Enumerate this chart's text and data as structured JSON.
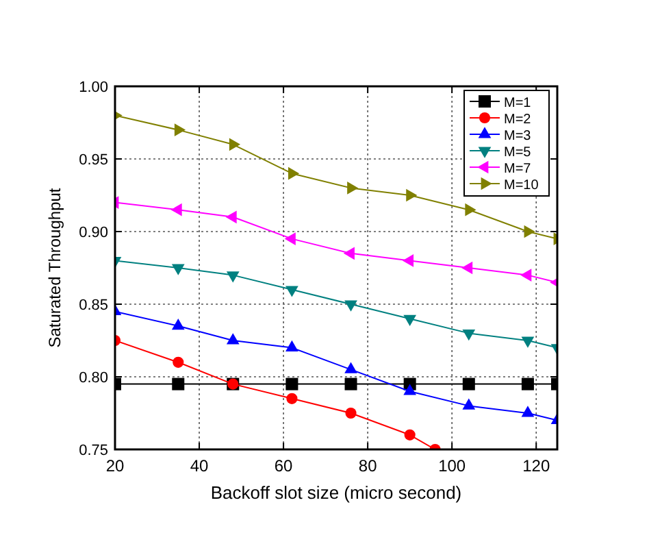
{
  "chart_data": {
    "type": "line",
    "xlabel": "Backoff slot size (micro second)",
    "ylabel": "Saturated Throughput",
    "x": [
      20,
      35,
      48,
      62,
      76,
      90,
      104,
      118,
      125
    ],
    "xlim": [
      20,
      125
    ],
    "xticks": [
      20,
      40,
      60,
      80,
      100,
      120
    ],
    "ylim": [
      0.75,
      1.0
    ],
    "yticks": [
      {
        "value": 0.75,
        "label": "0.75"
      },
      {
        "value": 0.8,
        "label": "0.80"
      },
      {
        "value": 0.85,
        "label": "0.85"
      },
      {
        "value": 0.9,
        "label": "0.90"
      },
      {
        "value": 0.95,
        "label": "0.95"
      },
      {
        "value": 1.0,
        "label": "1.00"
      }
    ],
    "grid": true,
    "legend": "top right",
    "series": [
      {
        "name": "M=1",
        "color": "#000000",
        "marker": "square",
        "values": [
          0.795,
          0.795,
          0.795,
          0.795,
          0.795,
          0.795,
          0.795,
          0.795,
          0.795
        ]
      },
      {
        "name": "M=2",
        "color": "#ff0000",
        "marker": "circle",
        "x": [
          20,
          35,
          48,
          62,
          76,
          90,
          96
        ],
        "values": [
          0.825,
          0.81,
          0.795,
          0.785,
          0.775,
          0.76,
          0.75
        ]
      },
      {
        "name": "M=3",
        "color": "#0000ff",
        "marker": "triangle",
        "values": [
          0.845,
          0.835,
          0.825,
          0.82,
          0.805,
          0.79,
          0.78,
          0.775,
          0.77
        ]
      },
      {
        "name": "M=5",
        "color": "#008080",
        "marker": "triangle-down",
        "values": [
          0.88,
          0.875,
          0.87,
          0.86,
          0.85,
          0.84,
          0.83,
          0.825,
          0.82
        ]
      },
      {
        "name": "M=7",
        "color": "#ff00ff",
        "marker": "triangle-left",
        "values": [
          0.92,
          0.915,
          0.91,
          0.895,
          0.885,
          0.88,
          0.875,
          0.87,
          0.865
        ]
      },
      {
        "name": "M=10",
        "color": "#808000",
        "marker": "triangle-right",
        "values": [
          0.98,
          0.97,
          0.96,
          0.94,
          0.93,
          0.925,
          0.915,
          0.9,
          0.895
        ]
      }
    ]
  }
}
